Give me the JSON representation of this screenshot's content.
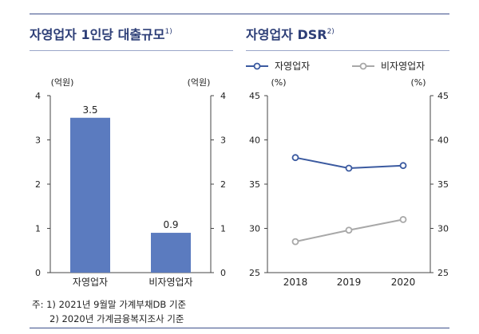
{
  "left_panel": {
    "title": "자영업자 1인당 대출규모",
    "title_sup": "1)"
  },
  "right_panel": {
    "title": "자영업자 DSR",
    "title_sup": "2)"
  },
  "notes": [
    "주: 1) 2021년 9월말 가계부채DB 기준",
    "2) 2020년 가계금융복지조사 기준"
  ],
  "chart_data": [
    {
      "type": "bar",
      "categories": [
        "자영업자",
        "비자영업자"
      ],
      "values": [
        3.5,
        0.9
      ],
      "value_labels": [
        "3.5",
        "0.9"
      ],
      "unit_left": "(억원)",
      "unit_right": "(억원)",
      "ylim": [
        0,
        4
      ],
      "yticks": [
        "0",
        "1",
        "2",
        "3",
        "4"
      ],
      "bar_color": "#5b7bbf",
      "grid": false
    },
    {
      "type": "line",
      "x": [
        "2018",
        "2019",
        "2020"
      ],
      "series": [
        {
          "name": "자영업자",
          "values": [
            38.0,
            36.8,
            37.1
          ],
          "color": "#3b5aa0"
        },
        {
          "name": "비자영업자",
          "values": [
            28.5,
            29.8,
            31.0
          ],
          "color": "#a8a8a8"
        }
      ],
      "unit_left": "(%)",
      "unit_right": "(%)",
      "ylim": [
        25,
        45
      ],
      "yticks": [
        "25",
        "30",
        "35",
        "40",
        "45"
      ],
      "legend": "top",
      "grid": false
    }
  ]
}
